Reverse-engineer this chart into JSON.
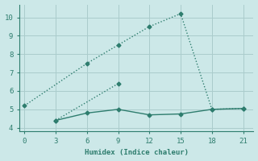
{
  "xlabel": "Humidex (Indice chaleur)",
  "ylabel": "",
  "background_color": "#cce8e8",
  "grid_color": "#aacccc",
  "line_color": "#2e7d6e",
  "axis_color": "#2e7d6e",
  "xlim": [
    -0.5,
    22
  ],
  "ylim": [
    3.8,
    10.7
  ],
  "xticks": [
    0,
    3,
    6,
    9,
    12,
    15,
    18,
    21
  ],
  "yticks": [
    4,
    5,
    6,
    7,
    8,
    9,
    10
  ],
  "line1_x": [
    0,
    6,
    9,
    12,
    15,
    18,
    21
  ],
  "line1_y": [
    5.2,
    7.5,
    8.5,
    9.5,
    10.2,
    5.0,
    5.05
  ],
  "line2_x": [
    3,
    9
  ],
  "line2_y": [
    4.4,
    6.4
  ],
  "line3_x": [
    3,
    6,
    9,
    12,
    15,
    18,
    21
  ],
  "line3_y": [
    4.4,
    4.8,
    5.0,
    4.7,
    4.75,
    5.0,
    5.05
  ],
  "marker": "D",
  "markersize": 2.5,
  "linewidth": 1.0
}
